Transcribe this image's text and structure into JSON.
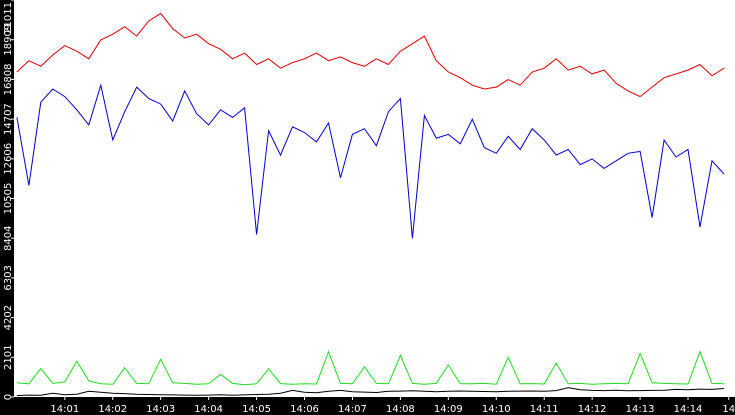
{
  "chart_data": {
    "type": "line",
    "x": [
      0,
      0.25,
      0.5,
      0.75,
      1,
      1.25,
      1.5,
      1.75,
      2,
      2.25,
      2.5,
      2.75,
      3,
      3.25,
      3.5,
      3.75,
      4,
      4.25,
      4.5,
      4.75,
      5,
      5.25,
      5.5,
      5.75,
      6,
      6.25,
      6.5,
      6.75,
      7,
      7.25,
      7.5,
      7.75,
      8,
      8.25,
      8.5,
      8.75,
      9,
      9.25,
      9.5,
      9.75,
      10,
      10.25,
      10.5,
      10.75,
      11,
      11.25,
      11.5,
      11.75,
      12,
      12.25,
      12.5,
      12.75,
      13,
      13.25,
      13.5,
      13.75,
      14,
      14.25,
      14.5,
      14.75
    ],
    "xlim": [
      -0.06,
      14.98
    ],
    "xticks": [
      {
        "value": 1,
        "label": "14:01"
      },
      {
        "value": 2,
        "label": "14:02"
      },
      {
        "value": 3,
        "label": "14:03"
      },
      {
        "value": 4,
        "label": "14:04"
      },
      {
        "value": 5,
        "label": "14:05"
      },
      {
        "value": 6,
        "label": "14:06"
      },
      {
        "value": 7,
        "label": "14:07"
      },
      {
        "value": 8,
        "label": "14:08"
      },
      {
        "value": 9,
        "label": "14:09"
      },
      {
        "value": 10,
        "label": "14:10"
      },
      {
        "value": 11,
        "label": "14:11"
      },
      {
        "value": 12,
        "label": "14:12"
      },
      {
        "value": 13,
        "label": "14:13"
      },
      {
        "value": 14,
        "label": "14:14"
      },
      {
        "value": 14.85,
        "label": "14"
      }
    ],
    "ylim": [
      0,
      21011
    ],
    "yticks": [
      0,
      2101,
      4202,
      6303,
      8404,
      10505,
      12606,
      14707,
      16808,
      18909,
      21011
    ],
    "series": [
      {
        "color": "#e00000",
        "values": [
          17200,
          17800,
          17500,
          18100,
          18600,
          18300,
          17900,
          18900,
          19200,
          19600,
          19100,
          19900,
          20300,
          19500,
          19000,
          19200,
          18700,
          18400,
          17900,
          18200,
          17600,
          17900,
          17400,
          17700,
          17900,
          18200,
          17800,
          18000,
          17700,
          17500,
          17900,
          17600,
          18300,
          18700,
          19100,
          17800,
          17200,
          16900,
          16500,
          16300,
          16400,
          16800,
          16500,
          17200,
          17400,
          17900,
          17300,
          17500,
          17100,
          17300,
          16600,
          16200,
          15900,
          16400,
          16900,
          17100,
          17300,
          17600,
          17000,
          17400
        ]
      },
      {
        "color": "#0000d0",
        "values": [
          14800,
          11200,
          15600,
          16300,
          15900,
          15200,
          14400,
          16500,
          13600,
          15100,
          16400,
          15800,
          15500,
          14600,
          16200,
          15000,
          14400,
          15200,
          14800,
          15300,
          8600,
          14100,
          12800,
          14300,
          14000,
          13500,
          14500,
          11600,
          13900,
          14200,
          13300,
          15100,
          15800,
          8400,
          14900,
          13700,
          13900,
          13400,
          14700,
          13200,
          12900,
          13800,
          13100,
          14200,
          13600,
          12800,
          13100,
          12300,
          12600,
          12100,
          12500,
          12900,
          13000,
          9500,
          13600,
          12700,
          13100,
          9000,
          12500,
          11800
        ]
      },
      {
        "color": "#22dd22",
        "values": [
          750,
          700,
          1500,
          720,
          800,
          1900,
          850,
          700,
          680,
          1550,
          720,
          700,
          2000,
          750,
          720,
          680,
          700,
          1200,
          720,
          650,
          700,
          1500,
          710,
          680,
          700,
          690,
          2400,
          720,
          700,
          1600,
          720,
          700,
          2200,
          720,
          680,
          720,
          1700,
          700,
          700,
          720,
          680,
          2100,
          700,
          710,
          690,
          1800,
          700,
          720,
          680,
          700,
          720,
          700,
          2300,
          750,
          720,
          700,
          690,
          2400,
          720,
          700
        ]
      },
      {
        "color": "#000000",
        "values": [
          80,
          100,
          90,
          200,
          120,
          150,
          300,
          250,
          200,
          180,
          150,
          130,
          120,
          110,
          100,
          90,
          100,
          120,
          90,
          110,
          130,
          150,
          200,
          350,
          250,
          220,
          300,
          350,
          280,
          260,
          240,
          300,
          310,
          330,
          300,
          280,
          300,
          320,
          300,
          290,
          280,
          300,
          310,
          320,
          300,
          340,
          500,
          380,
          350,
          340,
          360,
          330,
          340,
          350,
          360,
          400,
          380,
          420,
          400,
          450
        ]
      }
    ]
  }
}
